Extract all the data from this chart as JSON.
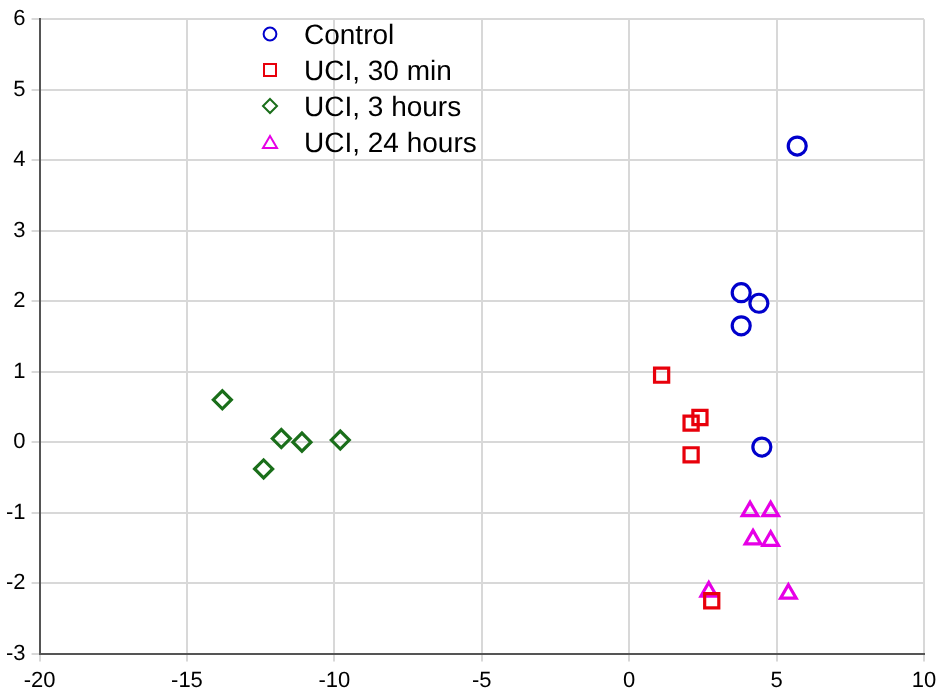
{
  "chart_data": {
    "type": "scatter",
    "xlim": [
      -20,
      10
    ],
    "xticks": [
      -20,
      -15,
      -10,
      -5,
      0,
      5,
      10
    ],
    "ylim": [
      -3,
      6
    ],
    "yticks": [
      -3,
      -2,
      -1,
      0,
      1,
      2,
      3,
      4,
      5,
      6
    ],
    "grid": true,
    "legend": "top",
    "series": [
      {
        "name": "Control",
        "color": "#0000cc",
        "marker": "circle",
        "x": [
          5.7,
          3.8,
          4.4,
          3.8,
          4.5
        ],
        "values": [
          4.2,
          2.12,
          1.97,
          1.65,
          -0.07
        ]
      },
      {
        "name": "UCI, 30 min",
        "color": "#e8000b",
        "marker": "square",
        "x": [
          1.1,
          2.4,
          2.1,
          2.1,
          2.8
        ],
        "values": [
          0.95,
          0.35,
          0.27,
          -0.18,
          -2.25
        ]
      },
      {
        "name": "UCI, 3 hours",
        "color": "#1a6e1a",
        "marker": "diamond",
        "x": [
          -13.8,
          -11.8,
          -11.1,
          -9.8,
          -12.4
        ],
        "values": [
          0.6,
          0.05,
          0,
          0.03,
          -0.38
        ]
      },
      {
        "name": "UCI, 24 hours",
        "color": "#e600e6",
        "marker": "triangle",
        "x": [
          4.1,
          4.8,
          4.2,
          4.8,
          2.7,
          5.4
        ],
        "values": [
          -0.98,
          -0.98,
          -1.38,
          -1.4,
          -2.12,
          -2.15
        ]
      }
    ]
  }
}
